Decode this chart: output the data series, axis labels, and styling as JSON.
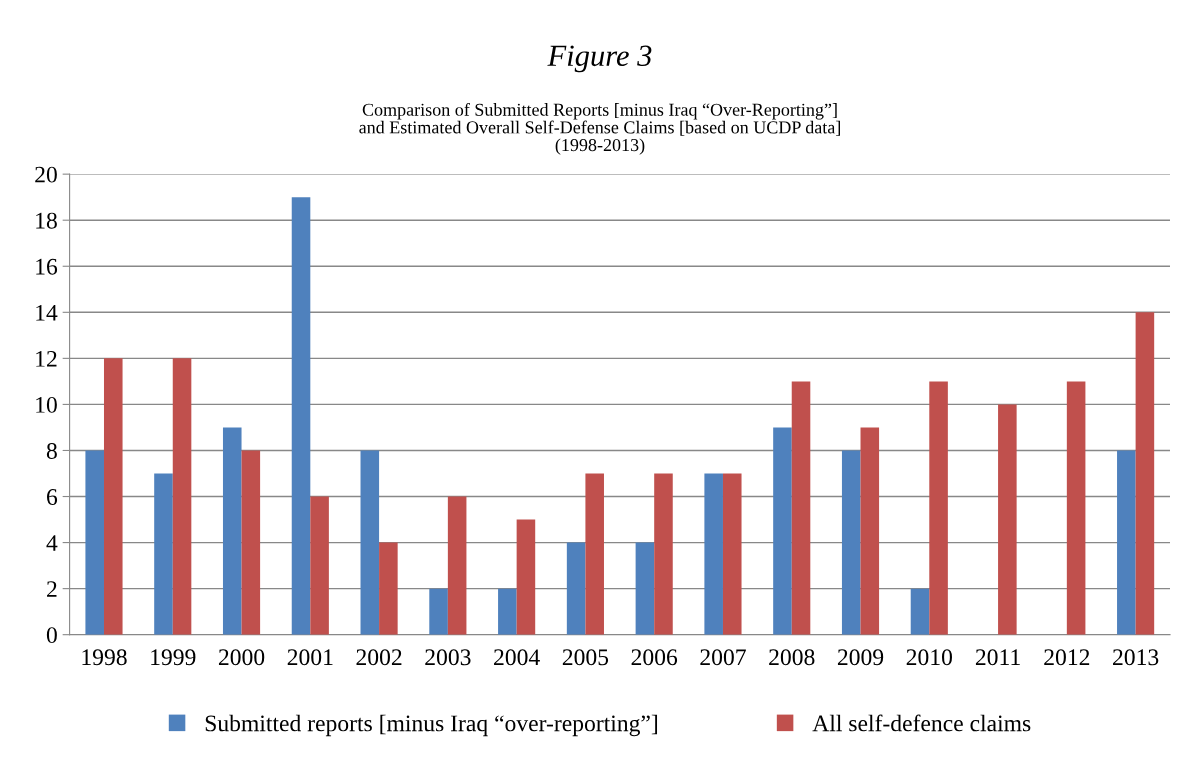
{
  "chart_data": {
    "type": "bar",
    "title": "Figure 3",
    "subtitle": "Comparison of Submitted Reports [minus Iraq “Over-Reporting”]\nand Estimated Overall Self-Defense Claims [based on UCDP data]\n(1998-2013)",
    "categories": [
      "1998",
      "1999",
      "2000",
      "2001",
      "2002",
      "2003",
      "2004",
      "2005",
      "2006",
      "2007",
      "2008",
      "2009",
      "2010",
      "2011",
      "2012",
      "2013"
    ],
    "series": [
      {
        "name": "Submitted reports [minus Iraq “over-reporting”]",
        "color": "#4f81bd",
        "values": [
          8,
          7,
          9,
          19,
          8,
          2,
          2,
          4,
          4,
          7,
          9,
          8,
          2,
          0,
          0,
          8
        ]
      },
      {
        "name": "All self-defence claims",
        "color": "#c0504d",
        "values": [
          12,
          12,
          8,
          6,
          4,
          6,
          5,
          7,
          7,
          7,
          11,
          9,
          11,
          10,
          11,
          14
        ]
      }
    ],
    "ylim": [
      0,
      20
    ],
    "yticks": [
      0,
      2,
      4,
      6,
      8,
      10,
      12,
      14,
      16,
      18,
      20
    ],
    "grid": "y",
    "legend": "bottom"
  }
}
